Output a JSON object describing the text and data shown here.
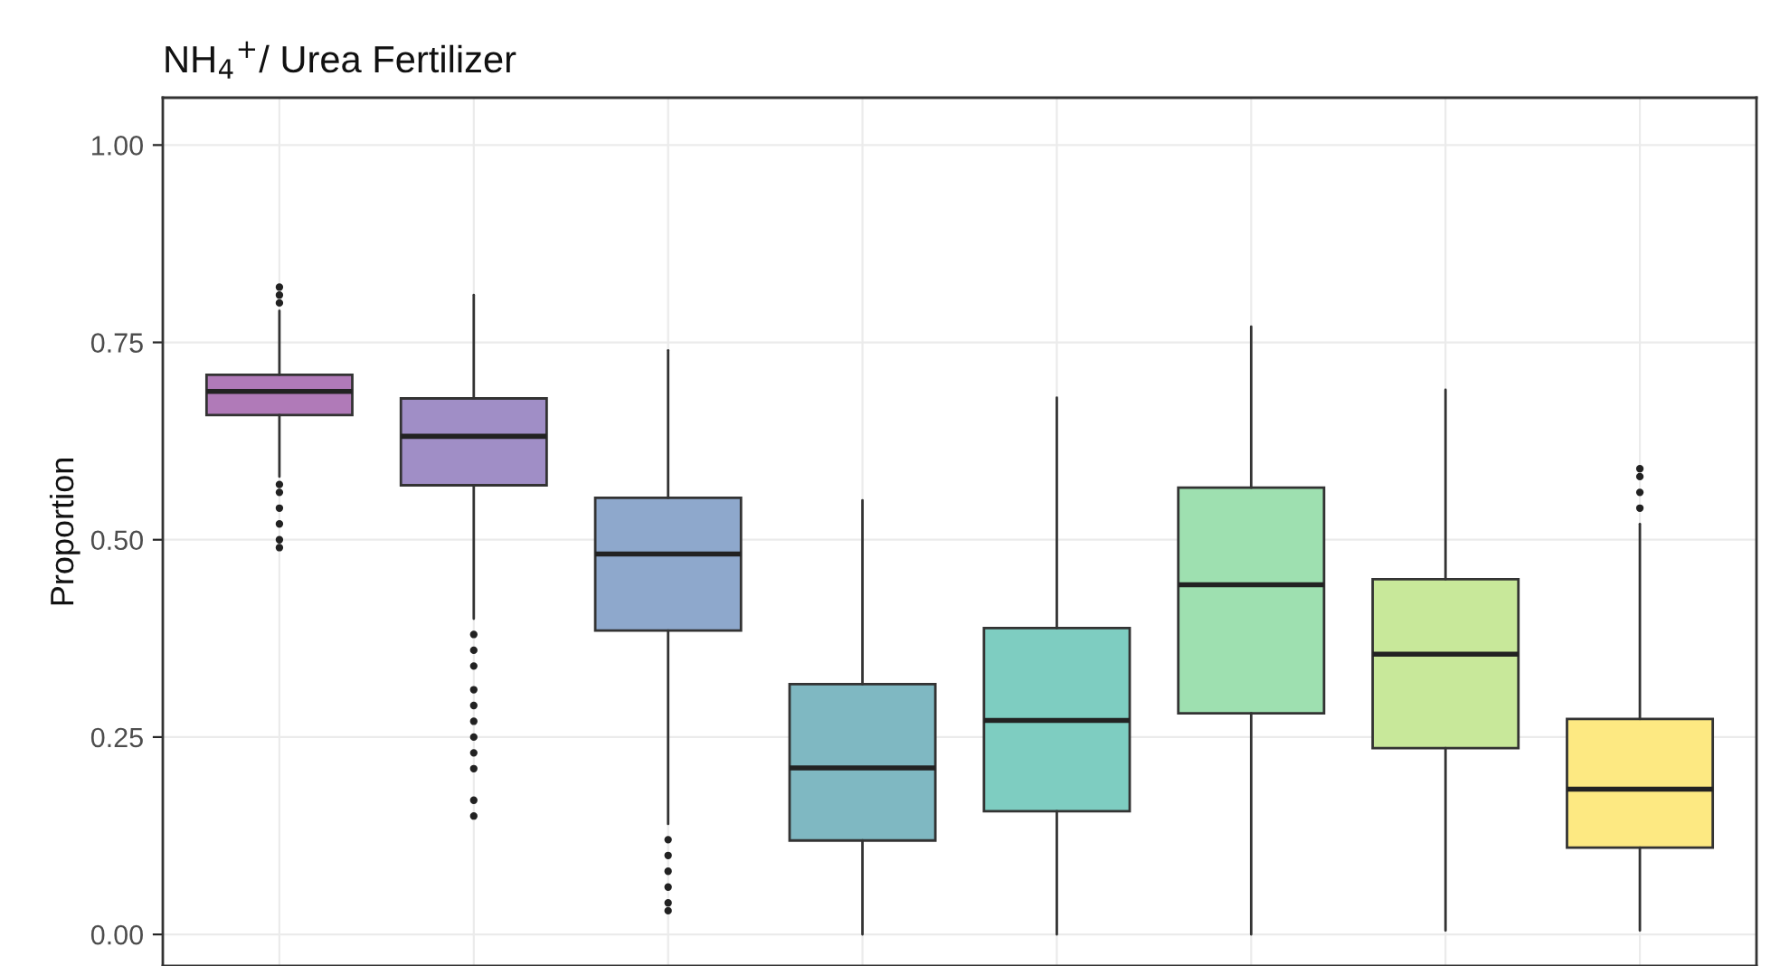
{
  "chart_data": {
    "type": "box",
    "title": "NH$_{4}$$^{+}$/ Urea Fertilizer",
    "ylabel": "Proportion",
    "categories": [
      null,
      null,
      null,
      null,
      null,
      null,
      null,
      null
    ],
    "colors": [
      "#b07ab8",
      "#a08ec6",
      "#8ea8cc",
      "#7fb8c2",
      "#7ecdc1",
      "#9ee0b0",
      "#c8e89a",
      "#fde982"
    ],
    "boxes": [
      {
        "low": 0.58,
        "q1": 0.658,
        "median": 0.688,
        "q3": 0.709,
        "high": 0.79,
        "outliers": [
          0.8,
          0.81,
          0.82,
          0.49,
          0.5,
          0.52,
          0.54,
          0.56,
          0.57
        ]
      },
      {
        "low": 0.4,
        "q1": 0.569,
        "median": 0.631,
        "q3": 0.679,
        "high": 0.81,
        "outliers": [
          0.38,
          0.36,
          0.34,
          0.31,
          0.29,
          0.27,
          0.25,
          0.23,
          0.21,
          0.17,
          0.15
        ]
      },
      {
        "low": 0.14,
        "q1": 0.385,
        "median": 0.482,
        "q3": 0.553,
        "high": 0.74,
        "outliers": [
          0.12,
          0.1,
          0.08,
          0.06,
          0.04,
          0.03
        ]
      },
      {
        "low": 0.0,
        "q1": 0.119,
        "median": 0.211,
        "q3": 0.317,
        "high": 0.55
      },
      {
        "low": 0.0,
        "q1": 0.156,
        "median": 0.271,
        "q3": 0.388,
        "high": 0.68
      },
      {
        "low": 0.0,
        "q1": 0.28,
        "median": 0.443,
        "q3": 0.566,
        "high": 0.77
      },
      {
        "low": 0.005,
        "q1": 0.236,
        "median": 0.355,
        "q3": 0.45,
        "high": 0.69
      },
      {
        "low": 0.005,
        "q1": 0.11,
        "median": 0.184,
        "q3": 0.273,
        "high": 0.52,
        "outliers": [
          0.54,
          0.56,
          0.58,
          0.59
        ]
      }
    ],
    "ylim": [
      -0.04,
      1.06
    ],
    "yticks": [
      {
        "value": 0,
        "label": "0.00"
      },
      0.25,
      {
        "value": 0.5,
        "label": "0.50"
      },
      0.75,
      {
        "value": 1,
        "label": "1.00"
      }
    ],
    "grid": true,
    "tick_labels": "y"
  }
}
